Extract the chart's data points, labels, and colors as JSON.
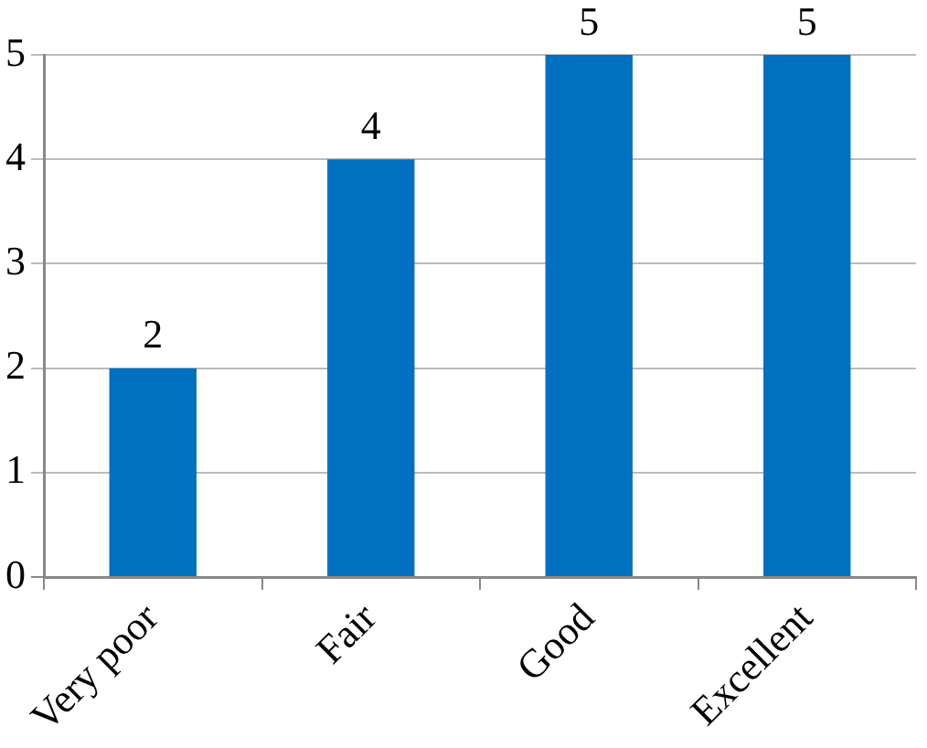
{
  "chart_data": {
    "type": "bar",
    "categories": [
      "Very poor",
      "Fair",
      "Good",
      "Excellent"
    ],
    "values": [
      2,
      4,
      5,
      5
    ],
    "color": "#0070c0",
    "ylim": [
      0,
      5
    ],
    "yticks": [
      0,
      1,
      2,
      3,
      4,
      5
    ],
    "grid": "y",
    "data_labels": true,
    "legend": false
  }
}
